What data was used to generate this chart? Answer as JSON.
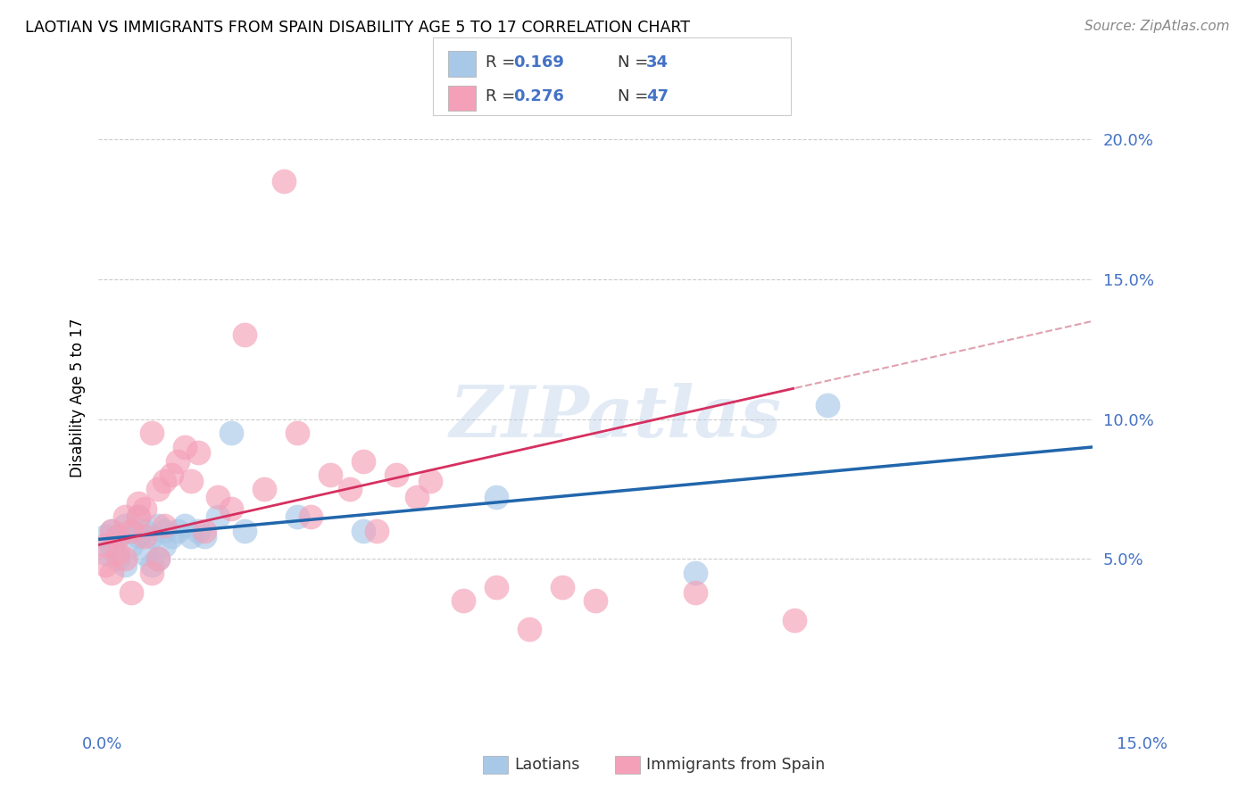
{
  "title": "LAOTIAN VS IMMIGRANTS FROM SPAIN DISABILITY AGE 5 TO 17 CORRELATION CHART",
  "source": "Source: ZipAtlas.com",
  "ylabel": "Disability Age 5 to 17",
  "y_tick_labels": [
    "5.0%",
    "10.0%",
    "15.0%",
    "20.0%"
  ],
  "y_tick_values": [
    0.05,
    0.1,
    0.15,
    0.2
  ],
  "xlim": [
    0.0,
    0.15
  ],
  "ylim": [
    -0.01,
    0.225
  ],
  "legend_label1": "Laotians",
  "legend_label2": "Immigrants from Spain",
  "color_blue": "#a8c8e8",
  "color_pink": "#f4a0b8",
  "line_color_blue": "#2166ac",
  "line_color_pink": "#d63060",
  "watermark": "ZIPatlas",
  "laotians_x": [
    0.001,
    0.001,
    0.002,
    0.002,
    0.003,
    0.003,
    0.004,
    0.004,
    0.005,
    0.005,
    0.006,
    0.006,
    0.007,
    0.007,
    0.008,
    0.008,
    0.009,
    0.009,
    0.01,
    0.01,
    0.011,
    0.012,
    0.013,
    0.014,
    0.015,
    0.016,
    0.018,
    0.02,
    0.022,
    0.03,
    0.04,
    0.06,
    0.09,
    0.11
  ],
  "laotians_y": [
    0.058,
    0.052,
    0.06,
    0.055,
    0.058,
    0.05,
    0.062,
    0.048,
    0.06,
    0.055,
    0.058,
    0.065,
    0.052,
    0.06,
    0.058,
    0.048,
    0.062,
    0.05,
    0.06,
    0.055,
    0.058,
    0.06,
    0.062,
    0.058,
    0.06,
    0.058,
    0.065,
    0.095,
    0.06,
    0.065,
    0.06,
    0.072,
    0.045,
    0.105
  ],
  "spain_x": [
    0.001,
    0.001,
    0.002,
    0.002,
    0.003,
    0.003,
    0.004,
    0.004,
    0.005,
    0.005,
    0.006,
    0.006,
    0.007,
    0.007,
    0.008,
    0.008,
    0.009,
    0.009,
    0.01,
    0.01,
    0.011,
    0.012,
    0.013,
    0.014,
    0.015,
    0.016,
    0.018,
    0.02,
    0.022,
    0.025,
    0.028,
    0.03,
    0.032,
    0.035,
    0.038,
    0.04,
    0.042,
    0.045,
    0.048,
    0.05,
    0.055,
    0.06,
    0.065,
    0.07,
    0.075,
    0.09,
    0.105
  ],
  "spain_y": [
    0.055,
    0.048,
    0.06,
    0.045,
    0.058,
    0.052,
    0.065,
    0.05,
    0.06,
    0.038,
    0.07,
    0.065,
    0.068,
    0.058,
    0.095,
    0.045,
    0.075,
    0.05,
    0.078,
    0.062,
    0.08,
    0.085,
    0.09,
    0.078,
    0.088,
    0.06,
    0.072,
    0.068,
    0.13,
    0.075,
    0.185,
    0.095,
    0.065,
    0.08,
    0.075,
    0.085,
    0.06,
    0.08,
    0.072,
    0.078,
    0.035,
    0.04,
    0.025,
    0.04,
    0.035,
    0.038,
    0.028
  ],
  "trend_lao_x0": 0.0,
  "trend_lao_y0": 0.057,
  "trend_lao_x1": 0.15,
  "trend_lao_y1": 0.09,
  "trend_spain_x0": 0.0,
  "trend_spain_y0": 0.055,
  "trend_spain_x1": 0.15,
  "trend_spain_y1": 0.135
}
